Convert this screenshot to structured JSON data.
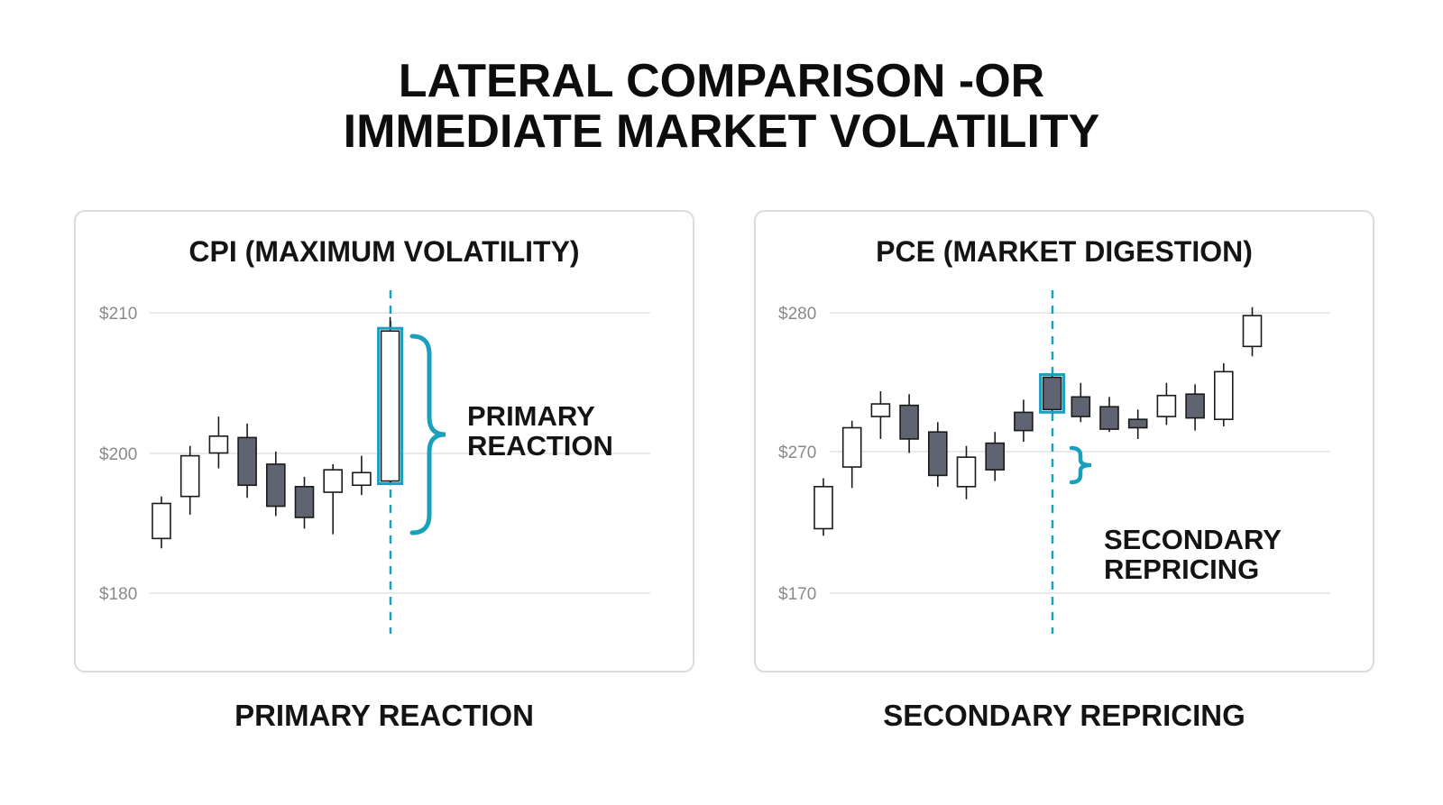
{
  "title": {
    "line1": "LATERAL COMPARISON -OR",
    "line2": "IMMEDIATE MARKET VOLATILITY"
  },
  "colors": {
    "accent": "#1a9fbd",
    "bearish": "#5f6470",
    "bullish": "#ffffff",
    "outline": "#1a1a1a",
    "grid": "#e2e2e2",
    "tick": "#8a8a8a"
  },
  "chart_data": [
    {
      "type": "candlestick",
      "title": "CPI (MAXIMUM VOLATILITY)",
      "caption": "PRIMARY REACTION",
      "y_ticks": [
        "$210",
        "$200",
        "$180"
      ],
      "annotation": "PRIMARY REACTION",
      "event_index": 8,
      "candles": [
        {
          "open": 0.195,
          "close": 0.32,
          "high": 0.345,
          "low": 0.16
        },
        {
          "open": 0.345,
          "close": 0.49,
          "high": 0.525,
          "low": 0.28
        },
        {
          "open": 0.5,
          "close": 0.56,
          "high": 0.63,
          "low": 0.445
        },
        {
          "open": 0.555,
          "close": 0.385,
          "high": 0.605,
          "low": 0.34
        },
        {
          "open": 0.46,
          "close": 0.31,
          "high": 0.505,
          "low": 0.275
        },
        {
          "open": 0.38,
          "close": 0.27,
          "high": 0.415,
          "low": 0.23
        },
        {
          "open": 0.36,
          "close": 0.44,
          "high": 0.46,
          "low": 0.21
        },
        {
          "open": 0.385,
          "close": 0.43,
          "high": 0.49,
          "low": 0.35
        },
        {
          "open": 0.4,
          "close": 0.935,
          "high": 0.985,
          "low": 0.385
        }
      ]
    },
    {
      "type": "candlestick",
      "title": "PCE (MARKET DIGESTION)",
      "caption": "SECONDARY REPRICING",
      "y_ticks": [
        "$280",
        "$270",
        "$170"
      ],
      "annotation_line1": "SECONDARY",
      "annotation_line2": "REPRICING",
      "event_index": 8,
      "candles": [
        {
          "open": 0.23,
          "close": 0.38,
          "high": 0.41,
          "low": 0.205
        },
        {
          "open": 0.45,
          "close": 0.59,
          "high": 0.615,
          "low": 0.375
        },
        {
          "open": 0.63,
          "close": 0.675,
          "high": 0.72,
          "low": 0.55
        },
        {
          "open": 0.67,
          "close": 0.55,
          "high": 0.71,
          "low": 0.5
        },
        {
          "open": 0.575,
          "close": 0.42,
          "high": 0.61,
          "low": 0.38
        },
        {
          "open": 0.38,
          "close": 0.485,
          "high": 0.525,
          "low": 0.335
        },
        {
          "open": 0.535,
          "close": 0.44,
          "high": 0.575,
          "low": 0.4
        },
        {
          "open": 0.645,
          "close": 0.58,
          "high": 0.69,
          "low": 0.54
        },
        {
          "open": 0.77,
          "close": 0.655,
          "high": 0.785,
          "low": 0.64
        },
        {
          "open": 0.7,
          "close": 0.63,
          "high": 0.75,
          "low": 0.61
        },
        {
          "open": 0.665,
          "close": 0.585,
          "high": 0.7,
          "low": 0.575
        },
        {
          "open": 0.62,
          "close": 0.59,
          "high": 0.655,
          "low": 0.55
        },
        {
          "open": 0.63,
          "close": 0.705,
          "high": 0.75,
          "low": 0.6
        },
        {
          "open": 0.71,
          "close": 0.625,
          "high": 0.745,
          "low": 0.58
        },
        {
          "open": 0.62,
          "close": 0.79,
          "high": 0.82,
          "low": 0.595
        },
        {
          "open": 0.88,
          "close": 0.99,
          "high": 1.02,
          "low": 0.845
        }
      ]
    }
  ]
}
